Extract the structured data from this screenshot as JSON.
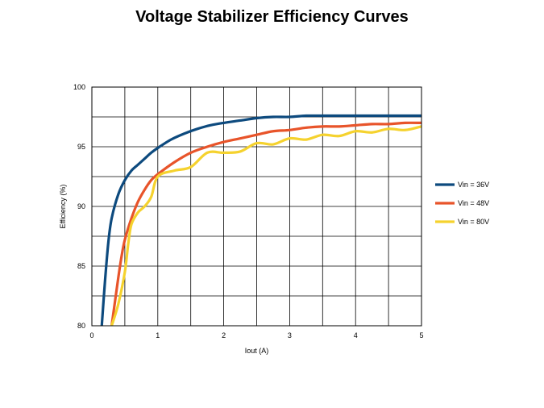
{
  "chart_data": {
    "type": "line",
    "title": "Voltage Stabilizer Efficiency Curves",
    "xlabel": "Iout (A)",
    "ylabel": "Efficiency (%)",
    "xlim": [
      0,
      5
    ],
    "ylim": [
      80,
      100
    ],
    "x_ticks": [
      0,
      1,
      2,
      3,
      4,
      5
    ],
    "y_ticks": [
      80,
      85,
      90,
      95,
      100
    ],
    "x_grid_step": 0.5,
    "y_grid_step": 2.5,
    "grid": true,
    "legend_position": "right",
    "series": [
      {
        "name": "Vin = 36V",
        "color": "#0d4a7e",
        "x": [
          0.15,
          0.2,
          0.25,
          0.3,
          0.4,
          0.5,
          0.6,
          0.7,
          0.8,
          0.9,
          1.0,
          1.2,
          1.4,
          1.6,
          1.8,
          2.0,
          2.25,
          2.5,
          2.75,
          3.0,
          3.25,
          3.5,
          4.0,
          4.5,
          5.0
        ],
        "y": [
          80.0,
          83.8,
          87.0,
          89.0,
          91.0,
          92.2,
          93.0,
          93.5,
          94.0,
          94.5,
          94.9,
          95.6,
          96.1,
          96.5,
          96.8,
          97.0,
          97.2,
          97.4,
          97.5,
          97.5,
          97.6,
          97.6,
          97.6,
          97.6,
          97.6
        ]
      },
      {
        "name": "Vin = 48V",
        "color": "#e8542a",
        "x": [
          0.3,
          0.35,
          0.4,
          0.45,
          0.5,
          0.6,
          0.7,
          0.8,
          0.9,
          1.0,
          1.25,
          1.5,
          1.75,
          2.0,
          2.25,
          2.5,
          2.75,
          3.0,
          3.25,
          3.5,
          3.75,
          4.0,
          4.25,
          4.5,
          4.75,
          5.0
        ],
        "y": [
          80.0,
          82.0,
          84.0,
          85.8,
          87.2,
          89.0,
          90.4,
          91.4,
          92.2,
          92.7,
          93.7,
          94.5,
          95.0,
          95.4,
          95.7,
          96.0,
          96.3,
          96.4,
          96.6,
          96.7,
          96.7,
          96.8,
          96.9,
          96.9,
          97.0,
          97.0
        ]
      },
      {
        "name": "Vin = 80V",
        "color": "#f5d22e",
        "x": [
          0.3,
          0.4,
          0.5,
          0.55,
          0.6,
          0.7,
          0.8,
          0.9,
          1.0,
          1.25,
          1.5,
          1.75,
          2.0,
          2.25,
          2.5,
          2.75,
          3.0,
          3.25,
          3.5,
          3.75,
          4.0,
          4.25,
          4.5,
          4.75,
          5.0
        ],
        "y": [
          80.0,
          81.8,
          84.5,
          86.8,
          88.5,
          89.5,
          90.0,
          90.8,
          92.5,
          93.0,
          93.3,
          94.5,
          94.5,
          94.6,
          95.3,
          95.2,
          95.7,
          95.6,
          96.0,
          95.9,
          96.3,
          96.2,
          96.5,
          96.4,
          96.7
        ]
      }
    ]
  }
}
